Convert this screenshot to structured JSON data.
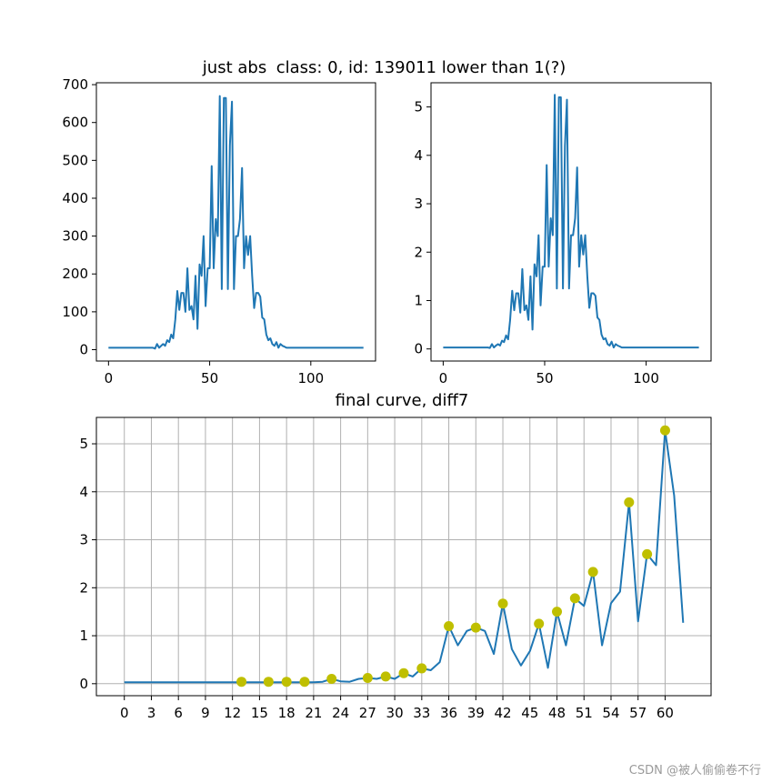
{
  "colors": {
    "line": "#1f77b4",
    "marker": "#bfbf00",
    "grid": "#b0b0b0"
  },
  "watermark": "CSDN @被人偷偷卷不行",
  "chart_data": [
    {
      "type": "line",
      "title": "just abs",
      "xlabel": "",
      "ylabel": "",
      "xlim": [
        -6,
        132
      ],
      "ylim": [
        -30,
        705
      ],
      "xticks": [
        0,
        50,
        100
      ],
      "yticks": [
        0,
        100,
        200,
        300,
        400,
        500,
        600,
        700
      ],
      "grid": false,
      "series": [
        {
          "x": [
            0,
            5,
            10,
            15,
            20,
            21,
            22,
            23,
            24,
            25,
            26,
            27,
            28,
            29,
            30,
            31,
            32,
            33,
            34,
            35,
            36,
            37,
            38,
            39,
            40,
            41,
            42,
            43,
            44,
            45,
            46,
            47,
            48,
            49,
            50,
            51,
            52,
            53,
            54,
            55,
            56,
            57,
            58,
            59,
            60,
            61,
            62,
            63,
            64,
            65,
            66,
            67,
            68,
            69,
            70,
            71,
            72,
            73,
            74,
            75,
            76,
            77,
            78,
            79,
            80,
            81,
            82,
            83,
            84,
            85,
            86,
            87,
            88,
            89,
            90,
            91,
            92,
            93,
            94,
            95,
            96,
            97,
            98,
            99,
            100,
            101,
            102,
            103,
            104,
            105,
            106,
            110,
            115,
            120,
            126
          ],
          "y": [
            5,
            5,
            5,
            5,
            5,
            5,
            5,
            3,
            15,
            5,
            10,
            15,
            10,
            25,
            20,
            40,
            30,
            80,
            155,
            105,
            150,
            150,
            100,
            215,
            105,
            115,
            80,
            195,
            55,
            225,
            195,
            300,
            115,
            215,
            215,
            485,
            215,
            345,
            300,
            670,
            160,
            665,
            665,
            160,
            540,
            655,
            160,
            300,
            300,
            345,
            480,
            215,
            300,
            250,
            300,
            195,
            110,
            150,
            150,
            140,
            85,
            80,
            40,
            25,
            30,
            15,
            10,
            20,
            5,
            15,
            10,
            8,
            5,
            5,
            5,
            5,
            5,
            5,
            5,
            5,
            5,
            5,
            5,
            5,
            5,
            5,
            5,
            5,
            5,
            5,
            5,
            5,
            5,
            5,
            5
          ]
        }
      ]
    },
    {
      "type": "line",
      "title": "class: 0, id: 139011 lower than 1(?)",
      "xlabel": "",
      "ylabel": "",
      "xlim": [
        -6,
        132
      ],
      "ylim": [
        -0.25,
        5.5
      ],
      "xticks": [
        0,
        50,
        100
      ],
      "yticks": [
        0,
        1,
        2,
        3,
        4,
        5
      ],
      "grid": false,
      "series": [
        {
          "x": [
            0,
            5,
            10,
            15,
            20,
            21,
            22,
            23,
            24,
            25,
            26,
            27,
            28,
            29,
            30,
            31,
            32,
            33,
            34,
            35,
            36,
            37,
            38,
            39,
            40,
            41,
            42,
            43,
            44,
            45,
            46,
            47,
            48,
            49,
            50,
            51,
            52,
            53,
            54,
            55,
            56,
            57,
            58,
            59,
            60,
            61,
            62,
            63,
            64,
            65,
            66,
            67,
            68,
            69,
            70,
            71,
            72,
            73,
            74,
            75,
            76,
            77,
            78,
            79,
            80,
            81,
            82,
            83,
            84,
            85,
            86,
            87,
            88,
            89,
            90,
            91,
            92,
            93,
            94,
            95,
            96,
            97,
            98,
            99,
            100,
            101,
            102,
            103,
            104,
            105,
            106,
            110,
            115,
            120,
            126
          ],
          "y": [
            0.03,
            0.03,
            0.03,
            0.03,
            0.03,
            0.03,
            0.03,
            0.02,
            0.1,
            0.03,
            0.07,
            0.1,
            0.07,
            0.17,
            0.14,
            0.28,
            0.2,
            0.6,
            1.2,
            0.8,
            1.15,
            1.15,
            0.75,
            1.65,
            0.8,
            0.9,
            0.6,
            1.5,
            0.4,
            1.75,
            1.5,
            2.35,
            0.9,
            1.7,
            1.7,
            3.8,
            1.7,
            2.7,
            2.35,
            5.25,
            1.25,
            5.2,
            5.2,
            1.25,
            4.2,
            5.15,
            1.25,
            2.35,
            2.35,
            2.7,
            3.75,
            1.7,
            2.35,
            1.95,
            2.35,
            1.5,
            0.85,
            1.15,
            1.15,
            1.1,
            0.65,
            0.6,
            0.3,
            0.2,
            0.22,
            0.1,
            0.07,
            0.15,
            0.03,
            0.1,
            0.07,
            0.05,
            0.03,
            0.03,
            0.03,
            0.03,
            0.03,
            0.03,
            0.03,
            0.03,
            0.03,
            0.03,
            0.03,
            0.03,
            0.03,
            0.03,
            0.03,
            0.03,
            0.03,
            0.03,
            0.03,
            0.03,
            0.03,
            0.03,
            0.03
          ]
        }
      ]
    },
    {
      "type": "line",
      "title": "final curve, diff7",
      "xlabel": "",
      "ylabel": "",
      "xlim": [
        -3.1,
        65.1
      ],
      "ylim": [
        -0.25,
        5.55
      ],
      "xticks": [
        0,
        3,
        6,
        9,
        12,
        15,
        18,
        21,
        24,
        27,
        30,
        33,
        36,
        39,
        42,
        45,
        48,
        51,
        54,
        57,
        60
      ],
      "yticks": [
        0,
        1,
        2,
        3,
        4,
        5
      ],
      "grid": true,
      "series": [
        {
          "x": [
            0,
            1,
            2,
            3,
            4,
            5,
            6,
            7,
            8,
            9,
            10,
            11,
            12,
            13,
            14,
            15,
            16,
            17,
            18,
            19,
            20,
            21,
            22,
            23,
            24,
            25,
            26,
            27,
            28,
            29,
            30,
            31,
            32,
            33,
            34,
            35,
            36,
            37,
            38,
            39,
            40,
            41,
            42,
            43,
            44,
            45,
            46,
            47,
            48,
            49,
            50,
            51,
            52,
            53,
            54,
            55,
            56,
            57,
            58,
            59,
            60,
            61,
            62
          ],
          "y": [
            0.03,
            0.03,
            0.03,
            0.03,
            0.03,
            0.03,
            0.03,
            0.03,
            0.03,
            0.03,
            0.03,
            0.03,
            0.03,
            0.03,
            0.03,
            0.03,
            0.03,
            0.03,
            0.03,
            0.03,
            0.03,
            0.03,
            0.04,
            0.1,
            0.05,
            0.04,
            0.1,
            0.12,
            0.1,
            0.15,
            0.1,
            0.22,
            0.15,
            0.32,
            0.28,
            0.45,
            1.2,
            0.8,
            1.1,
            1.17,
            1.1,
            0.62,
            1.67,
            0.72,
            0.38,
            0.68,
            1.25,
            0.33,
            1.5,
            0.8,
            1.78,
            1.62,
            2.33,
            0.8,
            1.68,
            1.92,
            3.78,
            1.3,
            2.7,
            2.47,
            5.28,
            3.92,
            1.27
          ]
        },
        {
          "type": "scatter",
          "x": [
            13,
            16,
            18,
            20,
            23,
            27,
            29,
            31,
            33,
            36,
            39,
            42,
            46,
            48,
            50,
            52,
            56,
            58,
            60
          ],
          "y": [
            0.04,
            0.04,
            0.04,
            0.04,
            0.1,
            0.12,
            0.15,
            0.22,
            0.32,
            1.2,
            1.17,
            1.67,
            1.25,
            1.5,
            1.78,
            2.33,
            3.78,
            2.7,
            5.28
          ]
        }
      ]
    }
  ]
}
